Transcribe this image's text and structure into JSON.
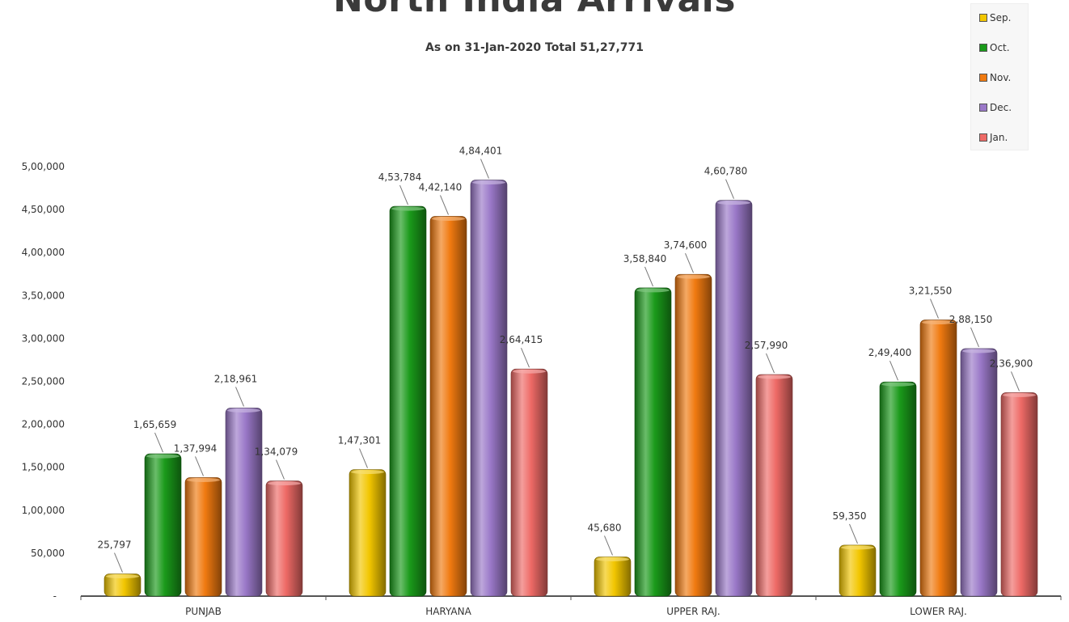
{
  "chart_data": {
    "type": "bar",
    "title": "North India Arrivals",
    "subtitle": "As on 31-Jan-2020 Total 51,27,771",
    "xlabel": "",
    "ylabel": "",
    "ylim": [
      0,
      500000
    ],
    "yticks": [
      0,
      50000,
      100000,
      150000,
      200000,
      250000,
      300000,
      350000,
      400000,
      450000,
      500000
    ],
    "ytick_labels": [
      "-",
      "50,000",
      "1,00,000",
      "1,50,000",
      "2,00,000",
      "2,50,000",
      "3,00,000",
      "3,50,000",
      "4,00,000",
      "4,50,000",
      "5,00,000"
    ],
    "categories": [
      "PUNJAB",
      "HARYANA",
      "UPPER RAJ.",
      "LOWER RAJ."
    ],
    "grid": false,
    "legend_position": "top-right",
    "series": [
      {
        "name": "Sep.",
        "color": "#f2c600",
        "values": [
          25797,
          147301,
          45680,
          59350
        ],
        "labels": [
          "25,797",
          "1,47,301",
          "45,680",
          "59,350"
        ]
      },
      {
        "name": "Oct.",
        "color": "#1a9a1a",
        "values": [
          165659,
          453784,
          358840,
          249400
        ],
        "labels": [
          "1,65,659",
          "4,53,784",
          "3,58,840",
          "2,49,400"
        ]
      },
      {
        "name": "Nov.",
        "color": "#f07a10",
        "values": [
          137994,
          442140,
          374600,
          321550
        ],
        "labels": [
          "1,37,994",
          "4,42,140",
          "3,74,600",
          "3,21,550"
        ]
      },
      {
        "name": "Dec.",
        "color": "#9a78c8",
        "values": [
          218961,
          484401,
          460780,
          288150
        ],
        "labels": [
          "2,18,961",
          "4,84,401",
          "4,60,780",
          "2,88,150"
        ]
      },
      {
        "name": "Jan.",
        "color": "#ee6a66",
        "values": [
          134079,
          264415,
          257990,
          236900
        ],
        "labels": [
          "1,34,079",
          "2,64,415",
          "2,57,990",
          "2,36,900"
        ]
      }
    ]
  }
}
